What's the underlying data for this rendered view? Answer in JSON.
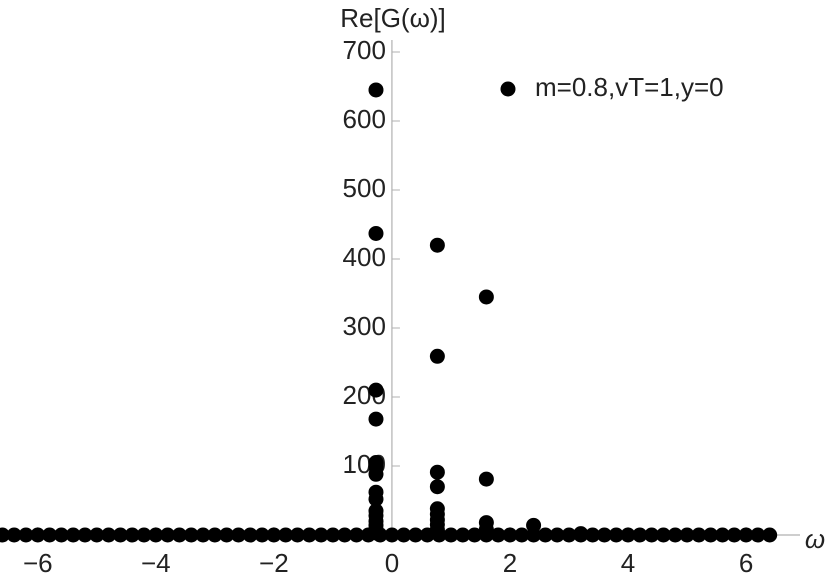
{
  "chart_data": {
    "type": "scatter",
    "y_label": "Re[G(ω)]",
    "x_label": "ω",
    "xlim": [
      -6.64,
      6.49
    ],
    "ylim": [
      0,
      700
    ],
    "xticks": [
      {
        "value": -6,
        "label": "−6"
      },
      {
        "value": -4,
        "label": "−4"
      },
      {
        "value": -2,
        "label": "−2"
      },
      0,
      2,
      4,
      6
    ],
    "yticks": [
      100,
      200,
      300,
      400,
      500,
      600,
      700
    ],
    "legend": "upper right",
    "series": [
      {
        "name": "m=0.8,vT=1,y=0",
        "color": "#000000",
        "x": [
          -6.6,
          -6.4,
          -6.2,
          -6,
          -5.8,
          -5.6,
          -5.4,
          -5.2,
          -5,
          -4.8,
          -4.6,
          -4.4,
          -4.2,
          -4,
          -3.8,
          -3.6,
          -3.4,
          -3.2,
          -3,
          -2.8,
          -2.6,
          -2.4,
          -2.2,
          -2,
          -1.8,
          -1.6,
          -1.4,
          -1.2,
          -1,
          -0.8,
          -0.6,
          -0.4,
          -0.2,
          0,
          0.2,
          0.4,
          0.6,
          0.8,
          1,
          1.2,
          1.4,
          1.6,
          1.8,
          2,
          2.2,
          2.4,
          2.6,
          2.8,
          3,
          3.2,
          3.4,
          3.6,
          3.8,
          4,
          4.2,
          4.4,
          4.6,
          4.8,
          5,
          5.2,
          5.4,
          5.6,
          5.8,
          6,
          6.2,
          6.4,
          -0.27,
          -0.27,
          -0.27,
          -0.27,
          -0.27,
          -0.27,
          -0.27,
          -0.27,
          -0.27,
          -0.27,
          -0.27,
          -0.27,
          -0.27,
          -0.27,
          -0.27,
          0.77,
          0.77,
          0.77,
          0.77,
          0.77,
          0.77,
          0.77,
          0.77,
          0.77,
          0.77,
          1.6,
          1.6,
          1.6,
          1.6,
          2.4,
          3.2
        ],
        "values": [
          0,
          0,
          0,
          0,
          0,
          0,
          0,
          0,
          0,
          0,
          0,
          0,
          0,
          0,
          0,
          0,
          0,
          0,
          0,
          0,
          0,
          0,
          0,
          0,
          0,
          0,
          0,
          0,
          0,
          0,
          0,
          0,
          0,
          0,
          0,
          0,
          0,
          0,
          0,
          0,
          0,
          0,
          0,
          0,
          0,
          0,
          0,
          0,
          0,
          0,
          0,
          0,
          0,
          0,
          0,
          0,
          0,
          0,
          0,
          0,
          0,
          0,
          0,
          0,
          0,
          0,
          645,
          437,
          210,
          168,
          105,
          98,
          88,
          62,
          52,
          35,
          28,
          20,
          14,
          8,
          3,
          420,
          259,
          91,
          70,
          38,
          30,
          22,
          15,
          8,
          3,
          345,
          81,
          18,
          8,
          14,
          2
        ]
      }
    ]
  }
}
